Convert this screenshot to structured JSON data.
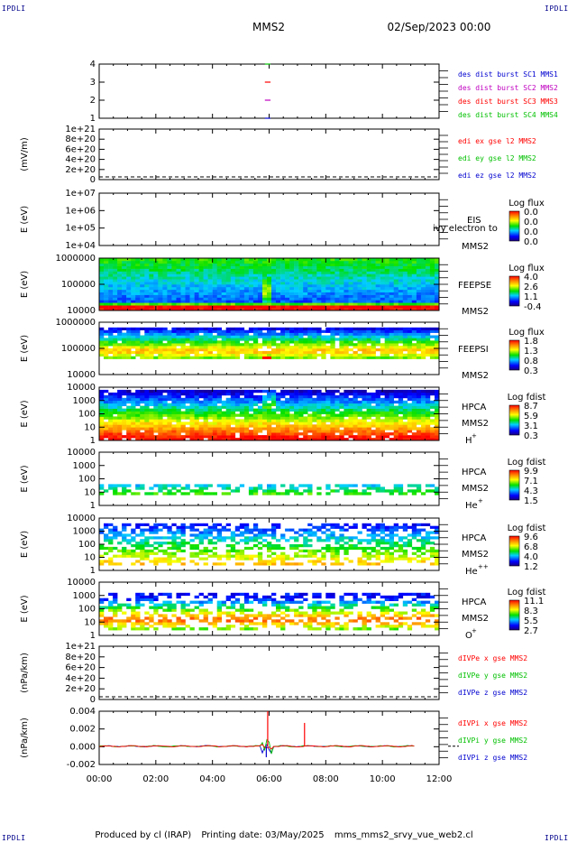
{
  "header": {
    "mission": "MMS2",
    "date": "02/Sep/2023 00:00",
    "corner_tl": "IPDLI",
    "corner_tr": "IPDLI",
    "corner_bl": "IPDLI",
    "corner_br": "IPDLI"
  },
  "footer": {
    "produced": "Produced by cl (IRAP)",
    "printing": "Printing date: 03/May/2025",
    "file": "mms_mms2_srvy_vue_web2.cl"
  },
  "colors": {
    "red": "#ff0000",
    "green": "#00c000",
    "blue": "#0000d0",
    "magenta": "#c000c0"
  },
  "chart_data": {
    "type": "heatmap",
    "x_axis": {
      "range": [
        "00:00",
        "12:00"
      ],
      "tick_labels": [
        "00:00",
        "02:00",
        "04:00",
        "06:00",
        "08:00",
        "10:00",
        "12:00"
      ]
    },
    "panels": [
      {
        "id": "des",
        "type": "line",
        "ylabel": "",
        "yticks": [
          "4",
          "3",
          "2",
          "1"
        ],
        "legend": [
          {
            "text": "des dist burst SC1 MMS1",
            "color": "#0000d0"
          },
          {
            "text": "des dist burst SC2 MMS2",
            "color": "#c000c0"
          },
          {
            "text": "des dist burst SC3 MMS3",
            "color": "#ff0000"
          },
          {
            "text": "des dist burst SC4 MMS4",
            "color": "#00c000"
          }
        ],
        "marks": [
          {
            "level": 4,
            "time": [
              5.85,
              6.05
            ],
            "color": "#00c000"
          },
          {
            "level": 3,
            "time": [
              5.85,
              6.05
            ],
            "color": "#ff0000"
          },
          {
            "level": 2,
            "time": [
              5.85,
              6.05
            ],
            "color": "#c000c0"
          },
          {
            "level": 1,
            "time": [
              5.85,
              6.05
            ],
            "color": "#0000d0"
          }
        ]
      },
      {
        "id": "edi",
        "type": "line",
        "ylabel": "(mV/m)",
        "yticks": [
          "1e+21",
          "8e+20",
          "6e+20",
          "4e+20",
          "2e+20",
          "0"
        ],
        "legend": [
          {
            "text": "edi ex gse l2 MMS2",
            "color": "#ff0000"
          },
          {
            "text": "edi ey gse l2 MMS2",
            "color": "#00c000"
          },
          {
            "text": "edi ez gse l2 MMS2",
            "color": "#0000d0"
          }
        ]
      },
      {
        "id": "eis",
        "type": "heatmap",
        "ylabel": "E (eV)",
        "yticks": [
          "1e+07",
          "1e+06",
          "1e+05",
          "1e+04"
        ],
        "side": [
          "EIS",
          "MMS2"
        ],
        "overlay": "ivy electron to",
        "cbar_title": "Log flux",
        "cbar_ticks": [
          "0.0",
          "0.0",
          "0.0",
          "0.0"
        ]
      },
      {
        "id": "feepse",
        "type": "heatmap",
        "ylabel": "E (eV)",
        "yticks": [
          "1000000",
          "100000",
          "10000"
        ],
        "side": [
          "FEEPSE",
          "MMS2"
        ],
        "cbar_title": "Log flux",
        "cbar_ticks": [
          "4.0",
          "2.6",
          "1.1",
          "-0.4"
        ]
      },
      {
        "id": "feepsi",
        "type": "heatmap",
        "ylabel": "E (eV)",
        "yticks": [
          "1000000",
          "100000",
          "10000"
        ],
        "side": [
          "FEEPSI",
          "MMS2"
        ],
        "cbar_title": "Log flux",
        "cbar_ticks": [
          "1.8",
          "1.3",
          "0.8",
          "0.3"
        ]
      },
      {
        "id": "hpca_h",
        "type": "heatmap",
        "ylabel": "E (eV)",
        "yticks": [
          "10000",
          "1000",
          "100",
          "10",
          "1"
        ],
        "side": [
          "HPCA",
          "MMS2"
        ],
        "species": "H",
        "charge": "+",
        "cbar_title": "Log fdist",
        "cbar_ticks": [
          "8.7",
          "5.9",
          "3.1",
          "0.3"
        ]
      },
      {
        "id": "hpca_he1",
        "type": "heatmap",
        "ylabel": "E (eV)",
        "yticks": [
          "10000",
          "1000",
          "100",
          "10",
          "1"
        ],
        "side": [
          "HPCA",
          "MMS2"
        ],
        "species": "He",
        "charge": "+",
        "cbar_title": "Log fdist",
        "cbar_ticks": [
          "9.9",
          "7.1",
          "4.3",
          "1.5"
        ]
      },
      {
        "id": "hpca_he2",
        "type": "heatmap",
        "ylabel": "E (eV)",
        "yticks": [
          "10000",
          "1000",
          "100",
          "10",
          "1"
        ],
        "side": [
          "HPCA",
          "MMS2"
        ],
        "species": "He",
        "charge": "++",
        "cbar_title": "Log fdist",
        "cbar_ticks": [
          "9.6",
          "6.8",
          "4.0",
          "1.2"
        ]
      },
      {
        "id": "hpca_o",
        "type": "heatmap",
        "ylabel": "E (eV)",
        "yticks": [
          "10000",
          "1000",
          "100",
          "10",
          "1"
        ],
        "side": [
          "HPCA",
          "MMS2"
        ],
        "species": "O",
        "charge": "+",
        "cbar_title": "Log fdist",
        "cbar_ticks": [
          "11.1",
          "8.3",
          "5.5",
          "2.7"
        ]
      },
      {
        "id": "divpe",
        "type": "line",
        "ylabel": "(nPa/km)",
        "yticks": [
          "1e+21",
          "8e+20",
          "6e+20",
          "4e+20",
          "2e+20",
          "0"
        ],
        "legend": [
          {
            "text": "dIVPe x gse MMS2",
            "color": "#ff0000"
          },
          {
            "text": "dIVPe y gse MMS2",
            "color": "#00c000"
          },
          {
            "text": "dIVPe z gse MMS2",
            "color": "#0000d0"
          }
        ]
      },
      {
        "id": "divpi",
        "type": "line",
        "ylabel": "(nPa/km)",
        "yticks": [
          "0.004",
          "0.002",
          "0.000",
          "-0.002"
        ],
        "legend": [
          {
            "text": "dIVPi x gse MMS2",
            "color": "#ff0000"
          },
          {
            "text": "dIVPi y gse MMS2",
            "color": "#00c000"
          },
          {
            "text": "dIVPi z gse MMS2",
            "color": "#0000d0"
          }
        ],
        "spikes": [
          {
            "time": 5.95,
            "value": 0.0048,
            "color": "#ff0000"
          },
          {
            "time": 5.9,
            "value": -0.0015,
            "color": "#0000d0"
          },
          {
            "time": 7.25,
            "value": 0.0032,
            "color": "#ff0000"
          }
        ]
      }
    ]
  }
}
